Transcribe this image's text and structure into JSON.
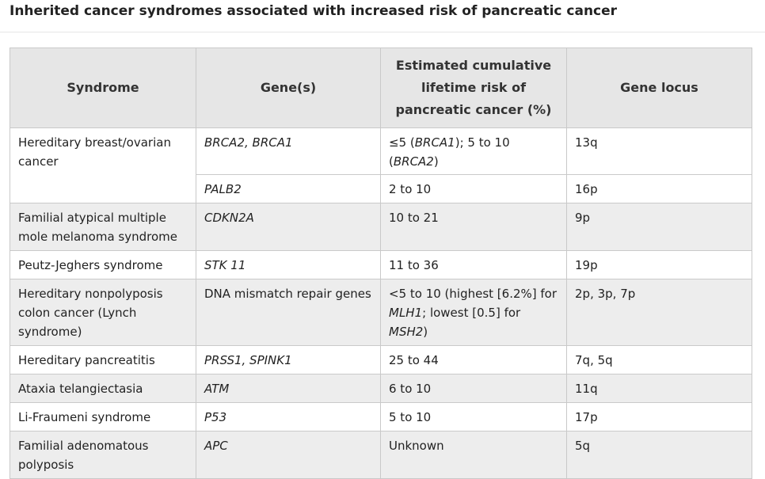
{
  "caption": "Inherited cancer syndromes associated with increased risk of pancreatic cancer",
  "table": {
    "headers": {
      "syndrome": "Syndrome",
      "genes": "Gene(s)",
      "risk": "Estimated cumulative lifetime risk of pancreatic cancer (%)",
      "locus": "Gene locus"
    },
    "rows": [
      {
        "syndrome": "Hereditary breast/ovarian cancer",
        "genes": "BRCA2, BRCA1",
        "risk": {
          "p1": "≤5 (",
          "i1": "BRCA1",
          "p2": "); 5 to 10 (",
          "i2": "BRCA2",
          "p3": ")"
        },
        "locus": "13q"
      },
      {
        "genes": "PALB2",
        "risk": "2 to 10",
        "locus": "16p"
      },
      {
        "syndrome": "Familial atypical multiple mole melanoma syndrome",
        "genes": "CDKN2A",
        "risk": "10 to 21",
        "locus": "9p"
      },
      {
        "syndrome": "Peutz-Jeghers syndrome",
        "genes": "STK 11",
        "risk": "11 to 36",
        "locus": "19p"
      },
      {
        "syndrome": "Hereditary nonpolyposis colon cancer (Lynch syndrome)",
        "genes": "DNA mismatch repair genes",
        "risk": {
          "p1": "<5 to 10 (highest [6.2%] for ",
          "i1": "MLH1",
          "p2": "; lowest [0.5] for ",
          "i2": "MSH2",
          "p3": ")"
        },
        "locus": "2p, 3p, 7p"
      },
      {
        "syndrome": "Hereditary pancreatitis",
        "genes": "PRSS1, SPINK1",
        "risk": "25 to 44",
        "locus": "7q, 5q"
      },
      {
        "syndrome": "Ataxia telangiectasia",
        "genes": "ATM",
        "risk": "6 to 10",
        "locus": "11q"
      },
      {
        "syndrome": "Li-Fraumeni syndrome",
        "genes": "P53",
        "risk": "5 to 10",
        "locus": "17p"
      },
      {
        "syndrome": "Familial adenomatous polyposis",
        "genes": "APC",
        "risk": "Unknown",
        "locus": "5q"
      }
    ]
  }
}
